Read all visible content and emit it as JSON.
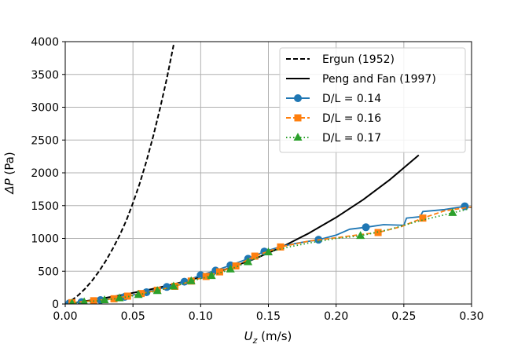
{
  "chart_data": {
    "type": "line",
    "xlabel": "U_z (m/s)",
    "ylabel": "ΔP (Pa)",
    "xlim": [
      0.0,
      0.3
    ],
    "ylim": [
      0,
      4000
    ],
    "x_ticks": [
      "0.00",
      "0.05",
      "0.10",
      "0.15",
      "0.20",
      "0.25",
      "0.30"
    ],
    "y_ticks": [
      "0",
      "500",
      "1000",
      "1500",
      "2000",
      "2500",
      "3000",
      "3500",
      "4000"
    ],
    "grid": true,
    "legend_position": "top-right",
    "series": [
      {
        "name": "Ergun (1952)",
        "color": "#000000",
        "style": "dashed",
        "marker": "none",
        "x": [
          0.0,
          0.005,
          0.01,
          0.015,
          0.02,
          0.025,
          0.03,
          0.035,
          0.04,
          0.045,
          0.05,
          0.055,
          0.06,
          0.065,
          0.07,
          0.075,
          0.08
        ],
        "y": [
          0,
          60,
          140,
          240,
          360,
          500,
          660,
          840,
          1040,
          1270,
          1540,
          1840,
          2180,
          2560,
          2980,
          3440,
          3950
        ]
      },
      {
        "name": "Peng and Fan (1997)",
        "color": "#000000",
        "style": "solid",
        "marker": "none",
        "x": [
          0.0,
          0.02,
          0.04,
          0.06,
          0.08,
          0.1,
          0.12,
          0.14,
          0.16,
          0.18,
          0.2,
          0.22,
          0.24,
          0.261
        ],
        "y": [
          0,
          60,
          130,
          210,
          300,
          410,
          540,
          690,
          870,
          1080,
          1320,
          1590,
          1900,
          2270
        ]
      },
      {
        "name": "D/L = 0.14",
        "color": "#1f77b4",
        "style": "solid",
        "marker": "circle",
        "x": [
          0.003,
          0.012,
          0.026,
          0.044,
          0.06,
          0.075,
          0.088,
          0.1,
          0.111,
          0.122,
          0.135,
          0.147,
          0.16,
          0.172,
          0.187,
          0.2,
          0.21,
          0.222,
          0.235,
          0.25,
          0.252,
          0.262,
          0.264,
          0.28,
          0.295,
          0.3
        ],
        "y": [
          10,
          30,
          60,
          110,
          180,
          260,
          340,
          440,
          510,
          590,
          690,
          800,
          880,
          930,
          980,
          1050,
          1140,
          1170,
          1210,
          1200,
          1310,
          1330,
          1410,
          1440,
          1490,
          1470
        ],
        "markers_x": [
          0.003,
          0.012,
          0.026,
          0.044,
          0.06,
          0.075,
          0.088,
          0.1,
          0.111,
          0.122,
          0.135,
          0.147,
          0.187,
          0.222,
          0.295
        ],
        "markers_y": [
          10,
          30,
          60,
          110,
          180,
          260,
          340,
          440,
          510,
          590,
          690,
          800,
          980,
          1170,
          1490
        ]
      },
      {
        "name": "D/L = 0.16",
        "color": "#ff7f0e",
        "style": "dashed",
        "marker": "square",
        "x": [
          0.005,
          0.021,
          0.036,
          0.046,
          0.056,
          0.068,
          0.081,
          0.093,
          0.104,
          0.114,
          0.126,
          0.14,
          0.159,
          0.18,
          0.2,
          0.215,
          0.231,
          0.248,
          0.264,
          0.28,
          0.3
        ],
        "y": [
          20,
          50,
          80,
          120,
          160,
          210,
          270,
          350,
          420,
          490,
          580,
          730,
          870,
          960,
          1010,
          1050,
          1090,
          1180,
          1310,
          1420,
          1480
        ],
        "markers_x": [
          0.005,
          0.021,
          0.036,
          0.046,
          0.056,
          0.068,
          0.081,
          0.093,
          0.104,
          0.114,
          0.126,
          0.14,
          0.159,
          0.231,
          0.264
        ],
        "markers_y": [
          20,
          50,
          80,
          120,
          160,
          210,
          270,
          350,
          420,
          490,
          580,
          730,
          870,
          1090,
          1310
        ]
      },
      {
        "name": "D/L = 0.17",
        "color": "#2ca02c",
        "style": "dotted",
        "marker": "triangle",
        "x": [
          0.005,
          0.014,
          0.029,
          0.04,
          0.054,
          0.068,
          0.08,
          0.093,
          0.108,
          0.122,
          0.135,
          0.15,
          0.165,
          0.18,
          0.2,
          0.218,
          0.24,
          0.26,
          0.286,
          0.298
        ],
        "y": [
          10,
          30,
          60,
          90,
          140,
          200,
          270,
          350,
          430,
          530,
          640,
          790,
          870,
          930,
          1000,
          1040,
          1140,
          1260,
          1390,
          1450
        ],
        "markers_x": [
          0.005,
          0.014,
          0.029,
          0.04,
          0.054,
          0.068,
          0.08,
          0.093,
          0.108,
          0.122,
          0.135,
          0.15,
          0.218,
          0.286
        ],
        "markers_y": [
          10,
          30,
          60,
          90,
          140,
          200,
          270,
          350,
          430,
          530,
          640,
          790,
          1040,
          1390
        ]
      }
    ]
  }
}
